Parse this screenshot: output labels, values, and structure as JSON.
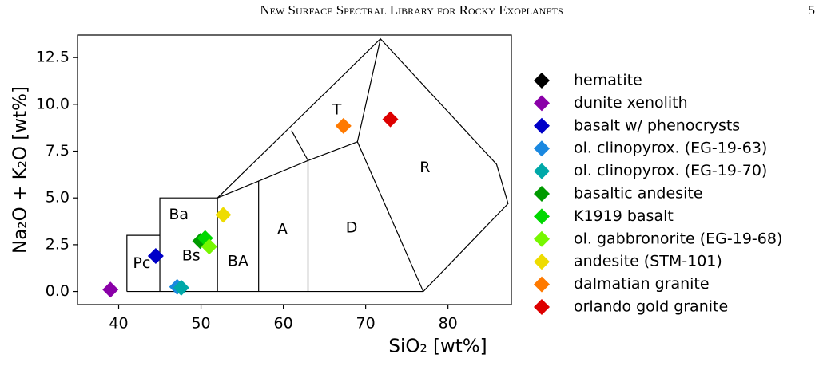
{
  "header": {
    "title": "New Surface Spectral Library for Rocky Exoplanets",
    "page": "5"
  },
  "chart_data": {
    "type": "scatter",
    "xlabel": "SiO₂ [wt%]",
    "ylabel": "Na₂O + K₂O [wt%]",
    "xlim": [
      35,
      87.7
    ],
    "ylim": [
      -0.7,
      13.7
    ],
    "xticks": [
      40,
      50,
      60,
      70,
      80
    ],
    "yticks": [
      {
        "value": 0,
        "label": "0.0"
      },
      2.5,
      {
        "value": 5,
        "label": "5.0"
      },
      7.5,
      {
        "value": 10,
        "label": "10.0"
      },
      12.5
    ],
    "legend": "outside right",
    "series": [
      {
        "name": "hematite",
        "color": "#000000",
        "x": [
          null
        ],
        "values": [
          null
        ]
      },
      {
        "name": "dunite xenolith",
        "color": "#8a00a8",
        "x": [
          39.0
        ],
        "values": [
          0.1
        ]
      },
      {
        "name": "basalt w/ phenocrysts",
        "color": "#0000c8",
        "x": [
          44.5
        ],
        "values": [
          1.9
        ]
      },
      {
        "name": "ol. clinopyrox. (EG-19-63)",
        "color": "#1a88e0",
        "x": [
          47.1
        ],
        "values": [
          0.25
        ]
      },
      {
        "name": "ol. clinopyrox. (EG-19-70)",
        "color": "#00a8a8",
        "x": [
          47.6
        ],
        "values": [
          0.2
        ]
      },
      {
        "name": "basaltic andesite",
        "color": "#009a00",
        "x": [
          49.9
        ],
        "values": [
          2.7
        ]
      },
      {
        "name": "K1919 basalt",
        "color": "#00d800",
        "x": [
          50.5
        ],
        "values": [
          2.85
        ]
      },
      {
        "name": "ol. gabbronorite (EG-19-68)",
        "color": "#77f700",
        "x": [
          51.0
        ],
        "values": [
          2.4
        ]
      },
      {
        "name": "andesite (STM-101)",
        "color": "#eedc00",
        "x": [
          52.7
        ],
        "values": [
          4.1
        ]
      },
      {
        "name": "dalmatian granite",
        "color": "#ff7a00",
        "x": [
          67.3
        ],
        "values": [
          8.85
        ]
      },
      {
        "name": "orlando gold granite",
        "color": "#dd0000",
        "x": [
          73.0
        ],
        "values": [
          9.2
        ]
      }
    ],
    "boundaries": [
      [
        [
          41,
          0
        ],
        [
          41,
          3
        ],
        [
          45,
          3
        ]
      ],
      [
        [
          41,
          0
        ],
        [
          77,
          0
        ]
      ],
      [
        [
          45,
          0
        ],
        [
          45,
          5
        ],
        [
          52,
          5
        ],
        [
          52,
          0
        ]
      ],
      [
        [
          52,
          5
        ],
        [
          71.8,
          13.5
        ]
      ],
      [
        [
          52,
          5
        ],
        [
          57,
          5.9
        ],
        [
          63,
          7
        ],
        [
          69,
          8
        ]
      ],
      [
        [
          57,
          5.9
        ],
        [
          57,
          0
        ]
      ],
      [
        [
          63,
          7
        ],
        [
          63,
          0
        ]
      ],
      [
        [
          61,
          8.6
        ],
        [
          63,
          7
        ]
      ],
      [
        [
          77,
          0
        ],
        [
          69,
          8
        ],
        [
          71.8,
          13.5
        ],
        [
          85.9,
          6.8
        ],
        [
          87.3,
          4.7
        ],
        [
          77,
          0
        ]
      ]
    ],
    "annotations": [
      {
        "text": "Pc",
        "x": 42.8,
        "y": 1.5
      },
      {
        "text": "Ba",
        "x": 47.3,
        "y": 4.1
      },
      {
        "text": "Bs",
        "x": 48.8,
        "y": 1.9
      },
      {
        "text": "BA",
        "x": 54.5,
        "y": 1.6
      },
      {
        "text": "A",
        "x": 59.9,
        "y": 3.3
      },
      {
        "text": "D",
        "x": 68.3,
        "y": 3.4
      },
      {
        "text": "T",
        "x": 66.5,
        "y": 9.7
      },
      {
        "text": "R",
        "x": 77.2,
        "y": 6.6
      }
    ]
  }
}
